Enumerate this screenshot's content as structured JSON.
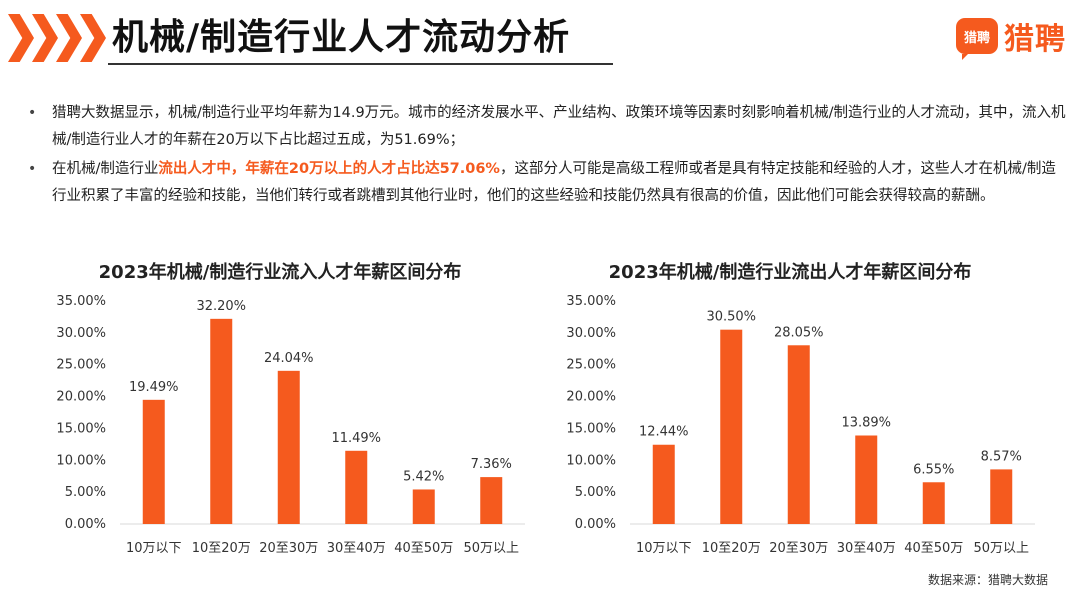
{
  "header": {
    "title": "机械/制造行业人才流动分析",
    "logo_icon_text": "猎聘",
    "logo_text": "猎聘"
  },
  "colors": {
    "accent": "#f55a1e",
    "bar": "#f55a1e"
  },
  "bullets": {
    "b1": "猎聘大数据显示，机械/制造行业平均年薪为14.9万元。城市的经济发展水平、产业结构、政策环境等因素时刻影响着机械/制造行业的人才流动，其中，流入机械/制造行业人才的年薪在20万以下占比超过五成，为51.69%；",
    "b2_pre": "在机械/制造行业",
    "b2_highlight": "流出人才中，年薪在20万以上的人才占比达57.06%",
    "b2_post": "，这部分人可能是高级工程师或者是具有特定技能和经验的人才，这些人才在机械/制造行业积累了丰富的经验和技能，当他们转行或者跳槽到其他行业时，他们的这些经验和技能仍然具有很高的价值，因此他们可能会获得较高的薪酬。"
  },
  "chart_data": [
    {
      "type": "bar",
      "title": "2023年机械/制造行业流入人才年薪区间分布",
      "categories": [
        "10万以下",
        "10至20万",
        "20至30万",
        "30至40万",
        "40至50万",
        "50万以上"
      ],
      "values": [
        19.49,
        32.2,
        24.04,
        11.49,
        5.42,
        7.36
      ],
      "value_labels": [
        "19.49%",
        "32.20%",
        "24.04%",
        "11.49%",
        "5.42%",
        "7.36%"
      ],
      "yticks": [
        "0.00%",
        "5.00%",
        "10.00%",
        "15.00%",
        "20.00%",
        "25.00%",
        "30.00%",
        "35.00%"
      ],
      "ylim": [
        0,
        35
      ]
    },
    {
      "type": "bar",
      "title": "2023年机械/制造行业流出人才年薪区间分布",
      "categories": [
        "10万以下",
        "10至20万",
        "20至30万",
        "30至40万",
        "40至50万",
        "50万以上"
      ],
      "values": [
        12.44,
        30.5,
        28.05,
        13.89,
        6.55,
        8.57
      ],
      "value_labels": [
        "12.44%",
        "30.50%",
        "28.05%",
        "13.89%",
        "6.55%",
        "8.57%"
      ],
      "yticks": [
        "0.00%",
        "5.00%",
        "10.00%",
        "15.00%",
        "20.00%",
        "25.00%",
        "30.00%",
        "35.00%"
      ],
      "ylim": [
        0,
        35
      ]
    }
  ],
  "footer": {
    "source": "数据来源：猎聘大数据"
  }
}
